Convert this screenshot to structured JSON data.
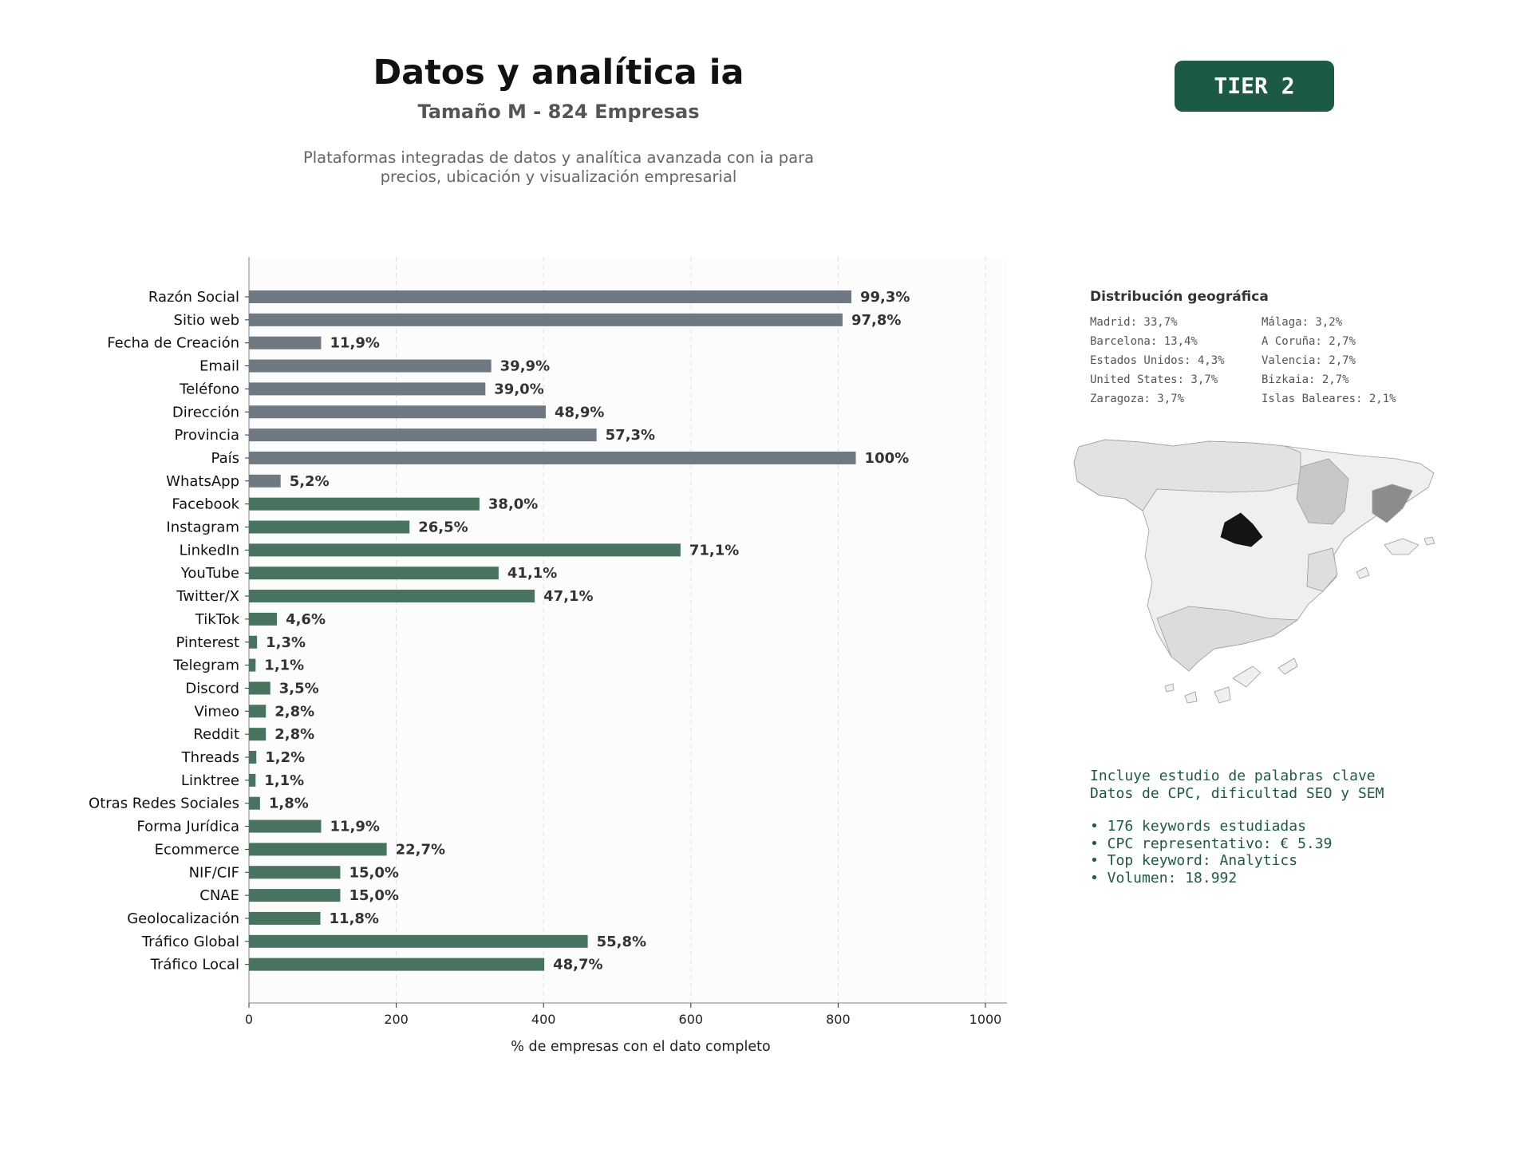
{
  "header": {
    "title": "Datos y analítica ia",
    "subtitle": "Tamaño M - 824 Empresas",
    "description_line1": "Plataformas integradas de datos y analítica avanzada con ia para",
    "description_line2": "precios, ubicación y visualización empresarial",
    "badge": "TIER 2"
  },
  "chart_data": {
    "type": "bar",
    "orientation": "horizontal",
    "xlabel": "% de empresas con el dato completo",
    "ylabel": "",
    "xlim": [
      0,
      1030
    ],
    "xticks": [
      0,
      200,
      400,
      600,
      800,
      1000
    ],
    "grid": "vertical dashed",
    "categories": [
      "Razón Social",
      "Sitio web",
      "Fecha de Creación",
      "Email",
      "Teléfono",
      "Dirección",
      "Provincia",
      "País",
      "WhatsApp",
      "Facebook",
      "Instagram",
      "LinkedIn",
      "YouTube",
      "Twitter/X",
      "TikTok",
      "Pinterest",
      "Telegram",
      "Discord",
      "Vimeo",
      "Reddit",
      "Threads",
      "Linktree",
      "Otras Redes Sociales",
      "Forma Jurídica",
      "Ecommerce",
      "NIF/CIF",
      "CNAE",
      "Geolocalización",
      "Tráfico Global",
      "Tráfico Local"
    ],
    "values": [
      818,
      806,
      98,
      329,
      321,
      403,
      472,
      824,
      43,
      313,
      218,
      586,
      339,
      388,
      38,
      11,
      9,
      29,
      23,
      23,
      10,
      9,
      15,
      98,
      187,
      124,
      124,
      97,
      460,
      401
    ],
    "labels": [
      "99,3%",
      "97,8%",
      "11,9%",
      "39,9%",
      "39,0%",
      "48,9%",
      "57,3%",
      "100%",
      "5,2%",
      "38,0%",
      "26,5%",
      "71,1%",
      "41,1%",
      "47,1%",
      "4,6%",
      "1,3%",
      "1,1%",
      "3,5%",
      "2,8%",
      "2,8%",
      "1,2%",
      "1,1%",
      "1,8%",
      "11,9%",
      "22,7%",
      "15,0%",
      "15,0%",
      "11,8%",
      "55,8%",
      "48,7%"
    ],
    "groups": [
      "basic",
      "basic",
      "basic",
      "basic",
      "basic",
      "basic",
      "basic",
      "basic",
      "basic",
      "social",
      "social",
      "social",
      "social",
      "social",
      "social",
      "social",
      "social",
      "social",
      "social",
      "social",
      "social",
      "social",
      "social",
      "social",
      "social",
      "social",
      "social",
      "social",
      "social",
      "social"
    ],
    "colors": {
      "basic": "#6e7983",
      "social": "#47735f"
    }
  },
  "geo": {
    "title": "Distribución geográfica",
    "col1": [
      "Madrid: 33,7%",
      "Barcelona: 13,4%",
      "Estados Unidos: 4,3%",
      "United States: 3,7%",
      "Zaragoza: 3,7%"
    ],
    "col2": [
      "Málaga: 3,2%",
      "A Coruña: 2,7%",
      "Valencia: 2,7%",
      "Bizkaia: 2,7%",
      "Islas Baleares: 2,1%"
    ]
  },
  "keywords": {
    "line1": "Incluye estudio de palabras clave",
    "line2": "Datos de CPC, dificultad SEO y SEM",
    "bullets": [
      "• 176 keywords estudiadas",
      "• CPC representativo: € 5.39",
      "• Top keyword: Analytics",
      "• Volumen: 18.992"
    ]
  }
}
